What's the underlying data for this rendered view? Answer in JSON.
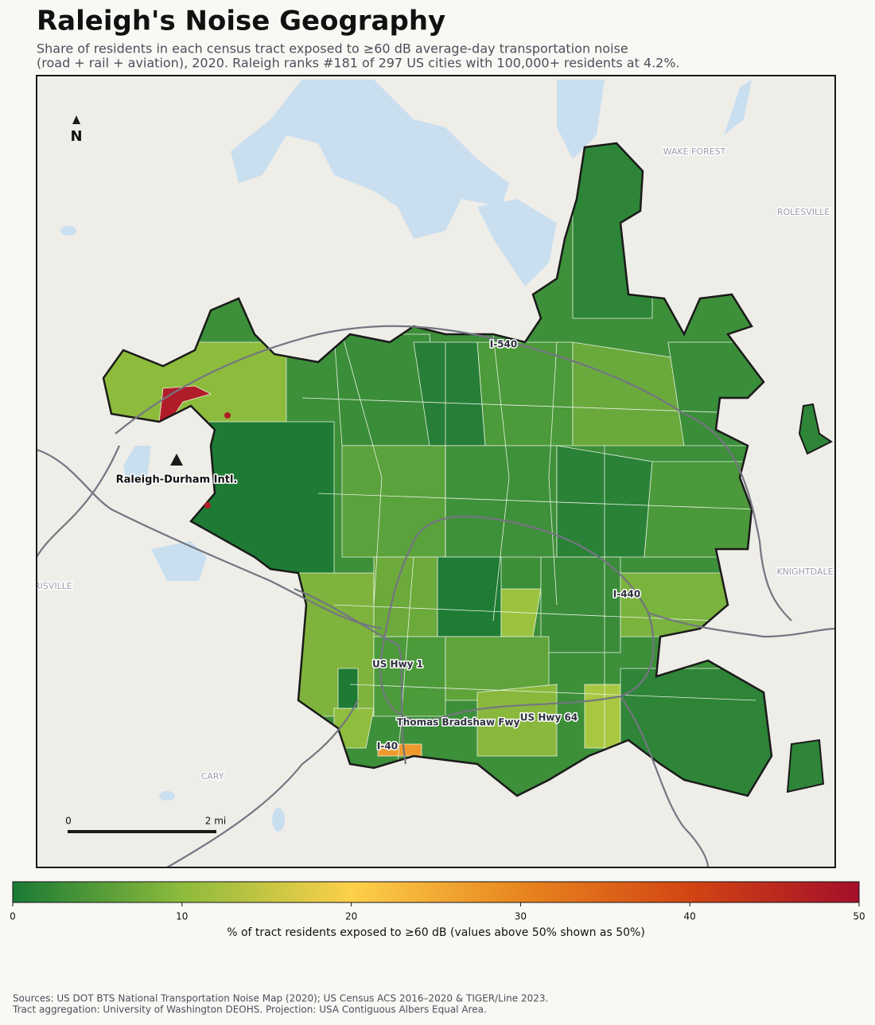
{
  "title": "Raleigh's Noise Geography",
  "subtitle": [
    "Share of residents in each census tract exposed to ≥60 dB average-day transportation noise",
    "(road + rail + aviation), 2020. Raleigh ranks #181 of 297 US cities with 100,000+ residents at 4.2%."
  ],
  "map": {
    "north_label": "N",
    "places": [
      "WAKE FOREST",
      "ROLESVILLE",
      "KNIGHTDALE",
      "MORRISVILLE",
      "CARY"
    ],
    "roads": [
      "I-540",
      "I-440",
      "US Hwy 1",
      "Thomas Bradshaw Fwy",
      "US Hwy 64",
      "I-40"
    ],
    "airport": "Raleigh-Durham Intl.",
    "scale_bar": {
      "start": "0",
      "end": "2 mi"
    }
  },
  "colorbar": {
    "lim": [
      0,
      50
    ],
    "ticks": [
      0,
      10,
      20,
      30,
      40,
      50
    ],
    "colors": [
      "#1a7a35",
      "#8dbb3c",
      "#fdd04a",
      "#e8861f",
      "#d24513",
      "#a50f2a"
    ],
    "label": "% of tract residents exposed to ≥60 dB (values above 50% shown as 50%)"
  },
  "sources": [
    "Sources: US DOT BTS National Transportation Noise Map (2020); US Census ACS 2016–2020 & TIGER/Line 2023.",
    "Tract aggregation: University of Washington DEOHS. Projection: USA Contiguous Albers Equal Area."
  ]
}
